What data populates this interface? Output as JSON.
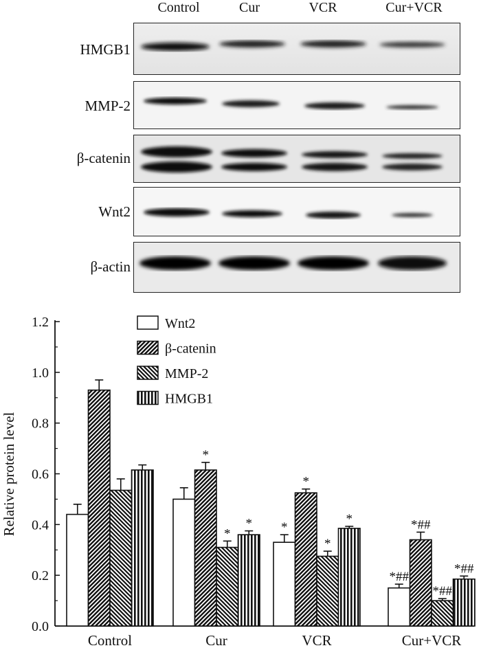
{
  "blot": {
    "lanes": [
      "Control",
      "Cur",
      "VCR",
      "Cur+VCR"
    ],
    "rows": [
      {
        "label": "HMGB1"
      },
      {
        "label": "MMP-2"
      },
      {
        "label": "β-catenin"
      },
      {
        "label": "Wnt2"
      },
      {
        "label": "β-actin"
      }
    ]
  },
  "chart_data": {
    "type": "bar",
    "ylabel": "Relative protein level",
    "ylim": [
      0,
      1.2
    ],
    "yticks": [
      "0.0",
      "0.2",
      "0.4",
      "0.6",
      "0.8",
      "1.0",
      "1.2"
    ],
    "categories": [
      "Control",
      "Cur",
      "VCR",
      "Cur+VCR"
    ],
    "legend_position": "top-center",
    "series": [
      {
        "name": "Wnt2",
        "pattern": "open",
        "values": [
          0.44,
          0.5,
          0.33,
          0.15
        ],
        "errors": [
          0.04,
          0.045,
          0.03,
          0.015
        ],
        "annotations": [
          "",
          "",
          "*",
          "*##"
        ]
      },
      {
        "name": "β-catenin",
        "pattern": "diagonal-right",
        "values": [
          0.93,
          0.615,
          0.525,
          0.34
        ],
        "errors": [
          0.04,
          0.03,
          0.015,
          0.03
        ],
        "annotations": [
          "",
          "*",
          "*",
          "*##"
        ]
      },
      {
        "name": "MMP-2",
        "pattern": "diagonal-left",
        "values": [
          0.535,
          0.31,
          0.275,
          0.1
        ],
        "errors": [
          0.045,
          0.025,
          0.02,
          0.008
        ],
        "annotations": [
          "",
          "*",
          "*",
          "*##"
        ]
      },
      {
        "name": "HMGB1",
        "pattern": "vertical",
        "values": [
          0.615,
          0.36,
          0.385,
          0.185
        ],
        "errors": [
          0.02,
          0.015,
          0.008,
          0.012
        ],
        "annotations": [
          "",
          "*",
          "*",
          "*##"
        ]
      }
    ]
  }
}
